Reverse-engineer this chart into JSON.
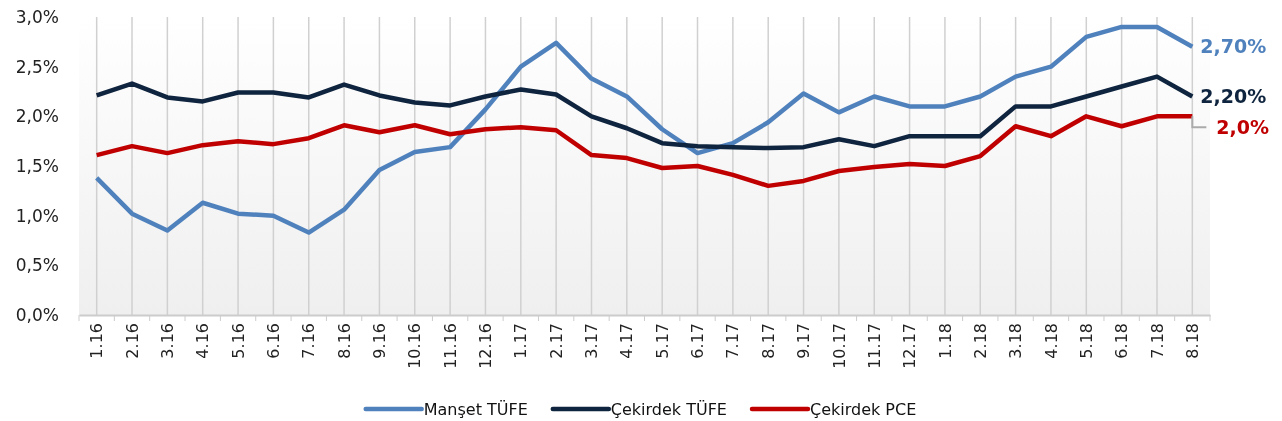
{
  "chart_data": {
    "type": "line",
    "categories": [
      "1.16",
      "2.16",
      "3.16",
      "4.16",
      "5.16",
      "6.16",
      "7.16",
      "8.16",
      "9.16",
      "10.16",
      "11.16",
      "12.16",
      "1.17",
      "2.17",
      "3.17",
      "4.17",
      "5.17",
      "6.17",
      "7.17",
      "8.17",
      "9.17",
      "10.17",
      "11.17",
      "12.17",
      "1.18",
      "2.18",
      "3.18",
      "4.18",
      "5.18",
      "6.18",
      "7.18",
      "8.18"
    ],
    "series": [
      {
        "name": "Manşet TÜFE",
        "color": "#4f81bd",
        "values": [
          1.38,
          1.02,
          0.85,
          1.13,
          1.02,
          1.0,
          0.83,
          1.06,
          1.46,
          1.64,
          1.69,
          2.07,
          2.5,
          2.74,
          2.38,
          2.2,
          1.87,
          1.63,
          1.73,
          1.94,
          2.23,
          2.04,
          2.2,
          2.1,
          2.1,
          2.2,
          2.4,
          2.5,
          2.8,
          2.9,
          2.9,
          2.7
        ]
      },
      {
        "name": "Çekirdek TÜFE",
        "color": "#0f243e",
        "values": [
          2.21,
          2.33,
          2.19,
          2.15,
          2.24,
          2.24,
          2.19,
          2.32,
          2.21,
          2.14,
          2.11,
          2.2,
          2.27,
          2.22,
          2.0,
          1.88,
          1.73,
          1.7,
          1.69,
          1.68,
          1.69,
          1.77,
          1.7,
          1.8,
          1.8,
          1.8,
          2.1,
          2.1,
          2.2,
          2.3,
          2.4,
          2.2
        ]
      },
      {
        "name": "Çekirdek PCE",
        "color": "#c00000",
        "values": [
          1.61,
          1.7,
          1.63,
          1.71,
          1.75,
          1.72,
          1.78,
          1.91,
          1.84,
          1.91,
          1.82,
          1.87,
          1.89,
          1.86,
          1.61,
          1.58,
          1.48,
          1.5,
          1.41,
          1.3,
          1.35,
          1.45,
          1.49,
          1.52,
          1.5,
          1.6,
          1.9,
          1.8,
          2.0,
          1.9,
          2.0,
          2.0
        ]
      }
    ],
    "ylim": [
      0,
      3
    ],
    "yticks": [
      {
        "value": 0,
        "label": "0,0%"
      },
      {
        "value": 0.5,
        "label": "0,5%"
      },
      {
        "value": 1,
        "label": "1,0%"
      },
      {
        "value": 1.5,
        "label": "1,5%"
      },
      {
        "value": 2,
        "label": "2,0%"
      },
      {
        "value": 2.5,
        "label": "2,5%"
      },
      {
        "value": 3,
        "label": "3,0%"
      }
    ],
    "annotations": [
      {
        "text": "2,70%",
        "x": "8.18",
        "y": 2.7
      },
      {
        "text": "2,20%",
        "x": "8.18",
        "y": 2.2
      },
      {
        "text": "2,0%",
        "x": "8.18",
        "y": 2.0
      }
    ],
    "grid": "x",
    "legend": "bottom",
    "marker": "none",
    "line_style": "solid"
  }
}
